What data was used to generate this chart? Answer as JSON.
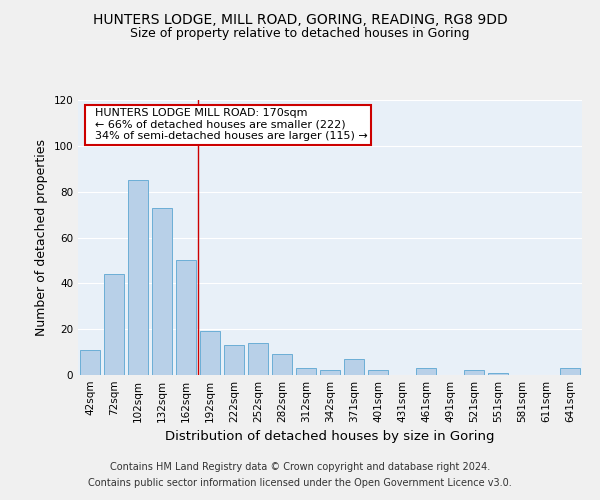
{
  "title1": "HUNTERS LODGE, MILL ROAD, GORING, READING, RG8 9DD",
  "title2": "Size of property relative to detached houses in Goring",
  "xlabel": "Distribution of detached houses by size in Goring",
  "ylabel": "Number of detached properties",
  "footer1": "Contains HM Land Registry data © Crown copyright and database right 2024.",
  "footer2": "Contains public sector information licensed under the Open Government Licence v3.0.",
  "categories": [
    "42sqm",
    "72sqm",
    "102sqm",
    "132sqm",
    "162sqm",
    "192sqm",
    "222sqm",
    "252sqm",
    "282sqm",
    "312sqm",
    "342sqm",
    "371sqm",
    "401sqm",
    "431sqm",
    "461sqm",
    "491sqm",
    "521sqm",
    "551sqm",
    "581sqm",
    "611sqm",
    "641sqm"
  ],
  "values": [
    11,
    44,
    85,
    73,
    50,
    19,
    13,
    14,
    9,
    3,
    2,
    7,
    2,
    0,
    3,
    0,
    2,
    1,
    0,
    0,
    3
  ],
  "bar_color": "#b8d0e8",
  "bar_edge_color": "#6baed6",
  "background_color": "#e8f0f8",
  "annotation_text_line1": "  HUNTERS LODGE MILL ROAD: 170sqm",
  "annotation_text_line2": "  ← 66% of detached houses are smaller (222)",
  "annotation_text_line3": "  34% of semi-detached houses are larger (115) →",
  "annotation_box_color": "#ffffff",
  "annotation_border_color": "#cc0000",
  "vline_color": "#cc0000",
  "vline_x": 4.5,
  "ylim": [
    0,
    120
  ],
  "yticks": [
    0,
    20,
    40,
    60,
    80,
    100,
    120
  ],
  "grid_color": "#ffffff",
  "fig_bg_color": "#f0f0f0",
  "title_fontsize": 10,
  "subtitle_fontsize": 9,
  "axis_label_fontsize": 9,
  "tick_fontsize": 7.5,
  "annotation_fontsize": 8,
  "footer_fontsize": 7
}
